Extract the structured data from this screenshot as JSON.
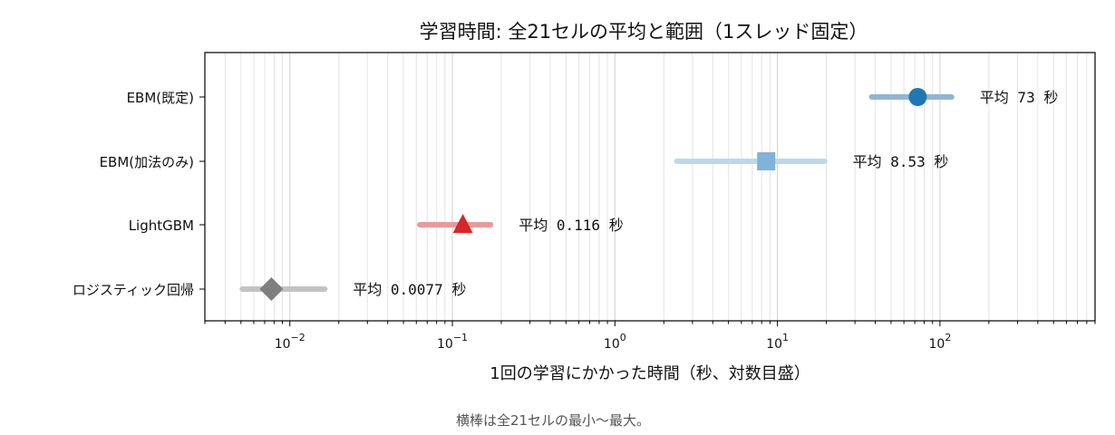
{
  "chart_data": {
    "type": "range-dot",
    "title": "学習時間: 全21セルの平均と範囲（1スレッド固定）",
    "xlabel": "1回の学習にかかった時間（秒、対数目盛）",
    "ylabel": "",
    "x_scale": "log",
    "xlim": [
      0.003,
      900
    ],
    "x_ticks": [
      {
        "value": 0.01,
        "base": "10",
        "exp": "−2"
      },
      {
        "value": 0.1,
        "base": "10",
        "exp": "−1"
      },
      {
        "value": 1,
        "base": "10",
        "exp": "0"
      },
      {
        "value": 10,
        "base": "10",
        "exp": "1"
      },
      {
        "value": 100,
        "base": "10",
        "exp": "2"
      }
    ],
    "grid": "vertical major and minor",
    "caption": "横棒は全21セルの最小〜最大。",
    "series": [
      {
        "name": "EBM(既定)",
        "mean": 73,
        "min": 38,
        "max": 118,
        "marker": "circle",
        "color": "#1f77b4",
        "range_color": "#8fb5d4",
        "mean_label": "平均 73 秒"
      },
      {
        "name": "EBM(加法のみ)",
        "mean": 8.53,
        "min": 2.4,
        "max": 19.5,
        "marker": "square",
        "color": "#7fb3d8",
        "range_color": "#bcd8ea",
        "mean_label": "平均 8.53 秒"
      },
      {
        "name": "LightGBM",
        "mean": 0.116,
        "min": 0.063,
        "max": 0.172,
        "marker": "triangle",
        "color": "#d62728",
        "range_color": "#e89a9b",
        "mean_label": "平均 0.116 秒"
      },
      {
        "name": "ロジスティック回帰",
        "mean": 0.0077,
        "min": 0.0051,
        "max": 0.0164,
        "marker": "diamond",
        "color": "#7f7f7f",
        "range_color": "#c3c3c3",
        "mean_label": "平均 0.0077 秒"
      }
    ]
  }
}
